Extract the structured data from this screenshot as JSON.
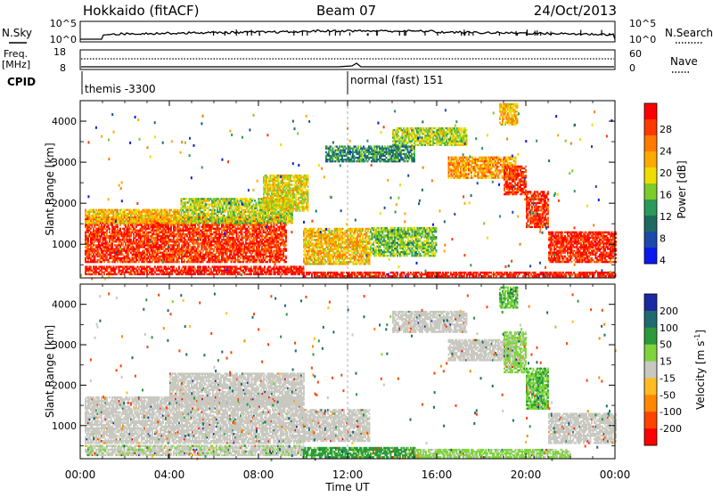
{
  "header": {
    "station": "Hokkaido (fitACF)",
    "beam": "Beam 07",
    "date": "24/Oct/2013"
  },
  "strip_labels": {
    "nsky": "N.Sky",
    "nsky_top": "10^5",
    "nsky_bottom": "10^0",
    "nsearch": "N.Search",
    "nsearch_top": "10^5",
    "nsearch_bottom": "10^0",
    "freq_line1": "Freq.",
    "freq_line2": "[MHz]",
    "freq_top": "18",
    "freq_bottom": "8",
    "nave": "Nave",
    "nave_top": "60",
    "nave_bottom": "0",
    "cpid": "CPID",
    "mode1": "themis -3300",
    "mode2": "normal (fast) 151"
  },
  "power_colorbar": {
    "label": "Power [dB]",
    "ticks": [
      "28",
      "24",
      "20",
      "16",
      "12",
      "8",
      "4"
    ],
    "colors": [
      "#ff0000",
      "#ff3a00",
      "#ff7a00",
      "#ffaa00",
      "#eedd00",
      "#7ccc2a",
      "#2a9a5a",
      "#1f6a60",
      "#1a4aaa",
      "#0a1aee"
    ]
  },
  "velocity_colorbar": {
    "label": "Velocity [m s^-1]",
    "ticks": [
      "200",
      "100",
      "50",
      "15",
      "-15",
      "-50",
      "-100",
      "-200"
    ],
    "colors": [
      "#1a2aa0",
      "#1f6a70",
      "#2a9a3a",
      "#7ed43c",
      "#c8c8c0",
      "#ffbb22",
      "#ff8800",
      "#ff4400",
      "#ff0000"
    ]
  },
  "chart_data": [
    {
      "type": "heatmap",
      "panel": "power",
      "xlabel": "",
      "ylabel": "Slant Range [km]",
      "x_ticks": [
        "00:00",
        "04:00",
        "08:00",
        "12:00",
        "16:00",
        "20:00",
        "00:00"
      ],
      "xlim": [
        "00:00",
        "24:00"
      ],
      "y_ticks": [
        1000,
        2000,
        3000,
        4000
      ],
      "ylim": [
        180,
        4500
      ],
      "colorscale_range_dB": [
        0,
        32
      ],
      "regions": [
        {
          "t0": 0.2,
          "t1": 9.2,
          "r0": 550,
          "r1": 1650,
          "value": 28
        },
        {
          "t0": 0.2,
          "t1": 4.5,
          "r0": 1500,
          "r1": 1850,
          "value": 20
        },
        {
          "t0": 4.5,
          "t1": 9.5,
          "r0": 1500,
          "r1": 2100,
          "value": 16
        },
        {
          "t0": 8.2,
          "t1": 10.2,
          "r0": 1800,
          "r1": 2700,
          "value": 18
        },
        {
          "t0": 0.2,
          "t1": 10.0,
          "r0": 250,
          "r1": 450,
          "value": 30
        },
        {
          "t0": 10.0,
          "t1": 13.0,
          "r0": 500,
          "r1": 1400,
          "value": 20
        },
        {
          "t0": 13.0,
          "t1": 16.0,
          "r0": 700,
          "r1": 1400,
          "value": 14
        },
        {
          "t0": 10.0,
          "t1": 24.0,
          "r0": 200,
          "r1": 330,
          "value": 30
        },
        {
          "t0": 14.0,
          "t1": 17.3,
          "r0": 3400,
          "r1": 3850,
          "value": 16
        },
        {
          "t0": 16.5,
          "t1": 19.5,
          "r0": 2600,
          "r1": 3100,
          "value": 22
        },
        {
          "t0": 19.0,
          "t1": 20.0,
          "r0": 2200,
          "r1": 2900,
          "value": 28
        },
        {
          "t0": 20.0,
          "t1": 21.0,
          "r0": 1400,
          "r1": 2300,
          "value": 28
        },
        {
          "t0": 21.0,
          "t1": 24.0,
          "r0": 550,
          "r1": 1300,
          "value": 29
        },
        {
          "t0": 11.0,
          "t1": 15.0,
          "r0": 3000,
          "r1": 3400,
          "value": 10
        },
        {
          "t0": 18.8,
          "t1": 19.6,
          "r0": 3900,
          "r1": 4400,
          "value": 20
        }
      ]
    },
    {
      "type": "heatmap",
      "panel": "velocity",
      "xlabel": "Time UT",
      "ylabel": "Slant Range [km]",
      "x_ticks": [
        "00:00",
        "04:00",
        "08:00",
        "12:00",
        "16:00",
        "20:00",
        "00:00"
      ],
      "xlim": [
        "00:00",
        "24:00"
      ],
      "y_ticks": [
        1000,
        2000,
        3000,
        4000
      ],
      "ylim": [
        180,
        4500
      ],
      "colorscale_range_ms": [
        -250,
        250
      ],
      "regions": [
        {
          "t0": 0.2,
          "t1": 10.0,
          "r0": 550,
          "r1": 1700,
          "value": 0
        },
        {
          "t0": 4.0,
          "t1": 10.0,
          "r0": 1500,
          "r1": 2300,
          "value": 0
        },
        {
          "t0": 0.2,
          "t1": 10.0,
          "r0": 250,
          "r1": 500,
          "value": 10
        },
        {
          "t0": 10.0,
          "t1": 13.0,
          "r0": 600,
          "r1": 1400,
          "value": 0
        },
        {
          "t0": 10.0,
          "t1": 15.0,
          "r0": 200,
          "r1": 450,
          "value": 40
        },
        {
          "t0": 15.0,
          "t1": 22.0,
          "r0": 200,
          "r1": 400,
          "value": 20
        },
        {
          "t0": 14.0,
          "t1": 17.3,
          "r0": 3300,
          "r1": 3800,
          "value": 0
        },
        {
          "t0": 16.5,
          "t1": 19.5,
          "r0": 2600,
          "r1": 3100,
          "value": 0
        },
        {
          "t0": 19.0,
          "t1": 20.0,
          "r0": 2300,
          "r1": 3300,
          "value": 20
        },
        {
          "t0": 20.0,
          "t1": 21.0,
          "r0": 1400,
          "r1": 2400,
          "value": 30
        },
        {
          "t0": 21.0,
          "t1": 24.0,
          "r0": 550,
          "r1": 1300,
          "value": 0
        },
        {
          "t0": 18.8,
          "t1": 19.6,
          "r0": 3900,
          "r1": 4400,
          "value": 30
        }
      ]
    }
  ]
}
